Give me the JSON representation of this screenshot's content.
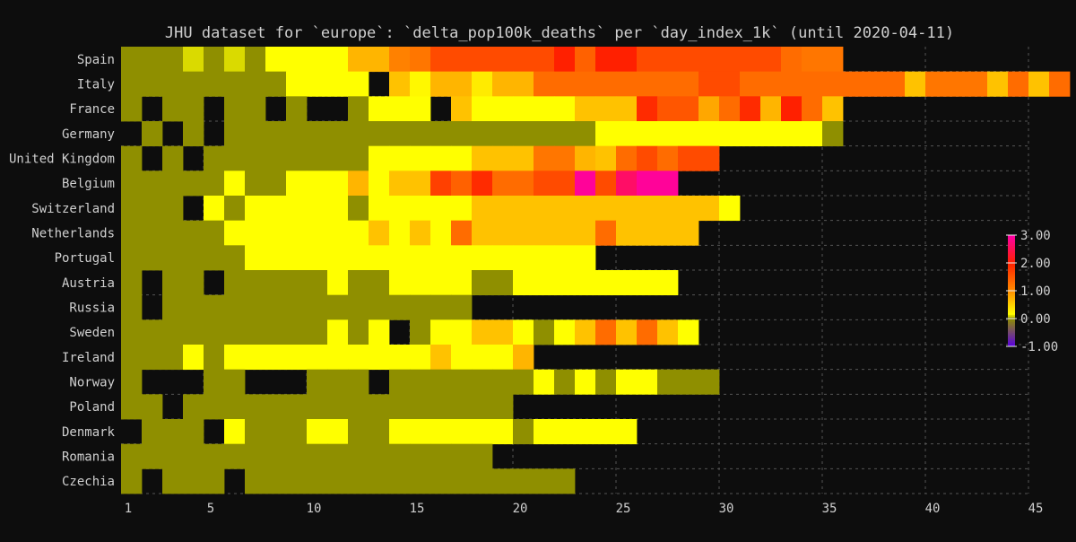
{
  "chart_data": {
    "type": "heatmap",
    "title": "JHU dataset for `europe`: `delta_pop100k_deaths` per `day_index_1k` (until 2020-04-11)",
    "xlabel": "",
    "ylabel": "",
    "x_range": [
      1,
      45
    ],
    "x_ticks": [
      1,
      5,
      10,
      15,
      20,
      25,
      30,
      35,
      40,
      45
    ],
    "grid": true,
    "legend": "right",
    "color_scale": {
      "min": -1.0,
      "max": 3.0,
      "ticks": [
        -1.0,
        0.0,
        1.0,
        2.0,
        3.0
      ],
      "tick_labels": [
        "-1.00",
        "0.00",
        "1.00",
        "2.00",
        "3.00"
      ],
      "stops": [
        {
          "value": -1.0,
          "color": "#5a00e0"
        },
        {
          "value": 0.0,
          "color": "#8f8f00"
        },
        {
          "value": 0.15,
          "color": "#ffff00"
        },
        {
          "value": 1.0,
          "color": "#ff8c00"
        },
        {
          "value": 2.0,
          "color": "#ff2000"
        },
        {
          "value": 3.0,
          "color": "#ff00aa"
        }
      ],
      "no_data_color": "#0d0d0d"
    },
    "rows": [
      {
        "label": "Spain",
        "values": [
          0,
          0,
          0,
          0.1,
          0,
          0.1,
          0,
          0.15,
          0.15,
          0.15,
          0.15,
          0.7,
          0.7,
          1.1,
          1.2,
          1.6,
          1.6,
          1.6,
          1.6,
          1.6,
          1.6,
          2.0,
          1.4,
          2.0,
          2.0,
          1.6,
          1.6,
          1.6,
          1.6,
          1.6,
          1.6,
          1.6,
          1.3,
          1.2,
          1.2
        ]
      },
      {
        "label": "Italy",
        "values": [
          0,
          0,
          0,
          0,
          0,
          0,
          0,
          0,
          0.15,
          0.15,
          0.15,
          0.15,
          null,
          0.6,
          0.2,
          0.7,
          0.7,
          0.3,
          0.7,
          0.7,
          1.3,
          1.3,
          1.3,
          1.3,
          1.3,
          1.3,
          1.3,
          1.3,
          1.6,
          1.6,
          1.3,
          1.3,
          1.3,
          1.3,
          1.3,
          1.3,
          1.3,
          1.3,
          0.6,
          1.2,
          1.2,
          1.2,
          0.6,
          1.3,
          0.6,
          1.3
        ]
      },
      {
        "label": "France",
        "values": [
          0,
          null,
          0,
          0,
          null,
          0,
          0,
          null,
          0,
          null,
          null,
          0,
          0.15,
          0.15,
          0.15,
          null,
          0.6,
          0.15,
          0.15,
          0.15,
          0.15,
          0.15,
          0.6,
          0.6,
          0.6,
          1.9,
          1.5,
          1.5,
          0.8,
          1.3,
          1.9,
          0.7,
          2.0,
          1.3,
          0.6
        ]
      },
      {
        "label": "Germany",
        "values": [
          null,
          0,
          null,
          0,
          null,
          0,
          0,
          0,
          0,
          0,
          0,
          0,
          0,
          0,
          0,
          0,
          0,
          0,
          0,
          0,
          0,
          0,
          0,
          0.15,
          0.15,
          0.15,
          0.15,
          0.15,
          0.15,
          0.15,
          0.15,
          0.15,
          0.15,
          0.15,
          0
        ]
      },
      {
        "label": "United Kingdom",
        "values": [
          0,
          null,
          0,
          null,
          0,
          0,
          0,
          0,
          0,
          0,
          0,
          0,
          0.15,
          0.15,
          0.15,
          0.15,
          0.15,
          0.6,
          0.6,
          0.6,
          1.2,
          1.2,
          0.7,
          0.6,
          1.3,
          1.6,
          1.3,
          1.6,
          1.6
        ]
      },
      {
        "label": "Belgium",
        "values": [
          0,
          0,
          0,
          0,
          0,
          0.15,
          0,
          0,
          0.15,
          0.15,
          0.15,
          0.7,
          0.15,
          0.6,
          0.6,
          1.7,
          1.4,
          1.9,
          1.3,
          1.3,
          1.6,
          1.6,
          2.9,
          1.6,
          2.6,
          2.9,
          2.9
        ]
      },
      {
        "label": "Switzerland",
        "values": [
          0,
          0,
          0,
          null,
          0.15,
          0,
          0.15,
          0.15,
          0.15,
          0.15,
          0.15,
          0,
          0.15,
          0.15,
          0.15,
          0.15,
          0.15,
          0.6,
          0.6,
          0.6,
          0.6,
          0.6,
          0.6,
          0.6,
          0.6,
          0.6,
          0.6,
          0.6,
          0.6,
          0.15
        ]
      },
      {
        "label": "Netherlands",
        "values": [
          0,
          0,
          0,
          0,
          0,
          0.15,
          0.15,
          0.15,
          0.15,
          0.15,
          0.15,
          0.15,
          0.6,
          0.15,
          0.6,
          0.15,
          1.3,
          0.6,
          0.6,
          0.6,
          0.6,
          0.6,
          0.6,
          1.3,
          0.6,
          0.6,
          0.6,
          0.6
        ]
      },
      {
        "label": "Portugal",
        "values": [
          0,
          0,
          0,
          0,
          0,
          0,
          0.15,
          0.15,
          0.15,
          0.15,
          0.15,
          0.15,
          0.15,
          0.15,
          0.15,
          0.15,
          0.15,
          0.15,
          0.15,
          0.15,
          0.15,
          0.15,
          0.15
        ]
      },
      {
        "label": "Austria",
        "values": [
          0,
          null,
          0,
          0,
          null,
          0,
          0,
          0,
          0,
          0,
          0.15,
          0,
          0,
          0.15,
          0.15,
          0.15,
          0.15,
          0,
          0,
          0.15,
          0.15,
          0.15,
          0.15,
          0.15,
          0.15,
          0.15,
          0.15
        ]
      },
      {
        "label": "Russia",
        "values": [
          0,
          null,
          0,
          0,
          0,
          0,
          0,
          0,
          0,
          0,
          0,
          0,
          0,
          0,
          0,
          0,
          0
        ]
      },
      {
        "label": "Sweden",
        "values": [
          0,
          0,
          0,
          0,
          0,
          0,
          0,
          0,
          0,
          0,
          0.15,
          0,
          0.15,
          null,
          0,
          0.15,
          0.15,
          0.6,
          0.6,
          0.15,
          0,
          0.15,
          0.6,
          1.3,
          0.6,
          1.3,
          0.6,
          0.15
        ]
      },
      {
        "label": "Ireland",
        "values": [
          0,
          0,
          0,
          0.15,
          0,
          0.15,
          0.15,
          0.15,
          0.15,
          0.15,
          0.15,
          0.15,
          0.15,
          0.15,
          0.15,
          0.6,
          0.15,
          0.15,
          0.15,
          0.7
        ]
      },
      {
        "label": "Norway",
        "values": [
          0,
          null,
          null,
          null,
          0,
          0,
          null,
          null,
          null,
          0,
          0,
          0,
          null,
          0,
          0,
          0,
          0,
          0,
          0,
          0,
          0.15,
          0,
          0.15,
          0,
          0.15,
          0.15,
          0,
          0,
          0
        ]
      },
      {
        "label": "Poland",
        "values": [
          0,
          0,
          null,
          0,
          0,
          0,
          0,
          0,
          0,
          0,
          0,
          0,
          0,
          0,
          0,
          0,
          0,
          0,
          0
        ]
      },
      {
        "label": "Denmark",
        "values": [
          null,
          0,
          0,
          0,
          null,
          0.15,
          0,
          0,
          0,
          0.15,
          0.15,
          0,
          0,
          0.15,
          0.15,
          0.15,
          0.15,
          0.15,
          0.15,
          0,
          0.15,
          0.15,
          0.15,
          0.15,
          0.15
        ]
      },
      {
        "label": "Romania",
        "values": [
          0,
          0,
          0,
          0,
          0,
          0,
          0,
          0,
          0,
          0,
          0,
          0,
          0,
          0,
          0,
          0,
          0,
          0
        ]
      },
      {
        "label": "Czechia",
        "values": [
          0,
          null,
          0,
          0,
          0,
          null,
          0,
          0,
          0,
          0,
          0,
          0,
          0,
          0,
          0,
          0,
          0,
          0,
          0,
          0,
          0,
          0
        ]
      }
    ]
  }
}
